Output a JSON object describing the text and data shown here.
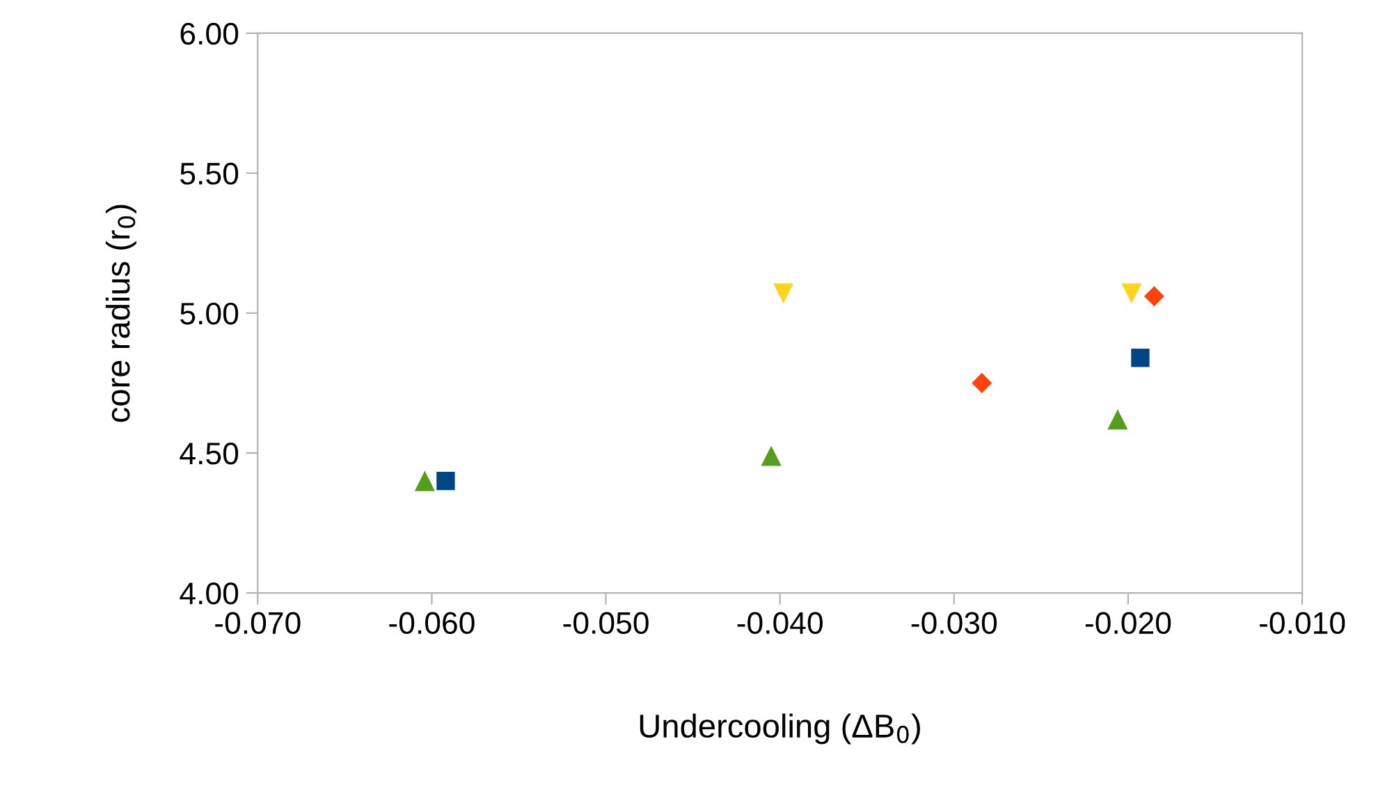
{
  "chart_data": {
    "type": "scatter",
    "xlabel": "Undercooling (ΔB$_{0}$)",
    "ylabel": "core radius (r$_{0}$)",
    "xlim": [
      -0.07,
      -0.01
    ],
    "xticks": [
      {
        "value": -0.07,
        "label": "-0.070"
      },
      {
        "value": -0.06,
        "label": "-0.060"
      },
      {
        "value": -0.05,
        "label": "-0.050"
      },
      {
        "value": -0.04,
        "label": "-0.040"
      },
      {
        "value": -0.03,
        "label": "-0.030"
      },
      {
        "value": -0.02,
        "label": "-0.020"
      },
      {
        "value": -0.01,
        "label": "-0.010"
      }
    ],
    "ylim": [
      4.0,
      6.0
    ],
    "yticks": [
      {
        "value": 4.0,
        "label": "4.00"
      },
      {
        "value": 4.5,
        "label": "4.50"
      },
      {
        "value": 5.0,
        "label": "5.00"
      },
      {
        "value": 5.5,
        "label": "5.50"
      },
      {
        "value": 6.0,
        "label": "6.00"
      }
    ],
    "grid": false,
    "legend": false,
    "series": [
      {
        "color": "#004586",
        "marker": "square",
        "x": [
          -0.0592,
          -0.0193
        ],
        "values": [
          4.4,
          4.84
        ]
      },
      {
        "color": "#579d1c",
        "marker": "triangle",
        "x": [
          -0.0604,
          -0.0405,
          -0.0206
        ],
        "values": [
          4.4,
          4.49,
          4.62
        ]
      },
      {
        "color": "#ffd320",
        "marker": "triangle_down",
        "x": [
          -0.0398,
          -0.0198
        ],
        "values": [
          5.07,
          5.07
        ]
      },
      {
        "color": "#ff420e",
        "marker": "diamond",
        "x": [
          -0.0284,
          -0.0185
        ],
        "values": [
          4.75,
          5.06
        ]
      }
    ]
  }
}
